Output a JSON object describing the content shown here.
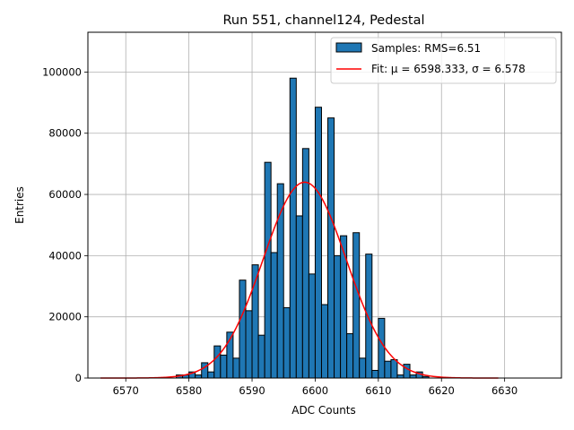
{
  "chart_data": {
    "type": "bar",
    "title": "Run 551, channel124, Pedestal",
    "xlabel": "ADC Counts",
    "ylabel": "Entries",
    "xlim": [
      6564,
      6639
    ],
    "ylim": [
      0,
      113000
    ],
    "xticks": [
      6570,
      6580,
      6590,
      6600,
      6610,
      6620,
      6630
    ],
    "yticks": [
      0,
      20000,
      40000,
      60000,
      80000,
      100000
    ],
    "grid": true,
    "legend_position": "top-right",
    "histogram": {
      "name": "Samples: RMS=6.51",
      "color": "#1f77b4",
      "bin_width": 1,
      "bin_start": 6578,
      "counts": [
        1000,
        1000,
        2000,
        1000,
        5000,
        2000,
        10500,
        7500,
        15000,
        6500,
        32000,
        22000,
        37000,
        14000,
        70500,
        41000,
        63500,
        23000,
        98000,
        53000,
        75000,
        34000,
        88500,
        24000,
        85000,
        40000,
        46500,
        14500,
        47500,
        6500,
        40500,
        2500,
        19500,
        5500,
        6000,
        1000,
        4500,
        1000,
        2000,
        500
      ]
    },
    "fit": {
      "name": "Fit: μ = 6598.333, σ = 6.578",
      "color": "#ff0000",
      "mu": 6598.333,
      "sigma": 6.578,
      "amplitude": 64000,
      "x_range": [
        6566,
        6629
      ]
    }
  }
}
